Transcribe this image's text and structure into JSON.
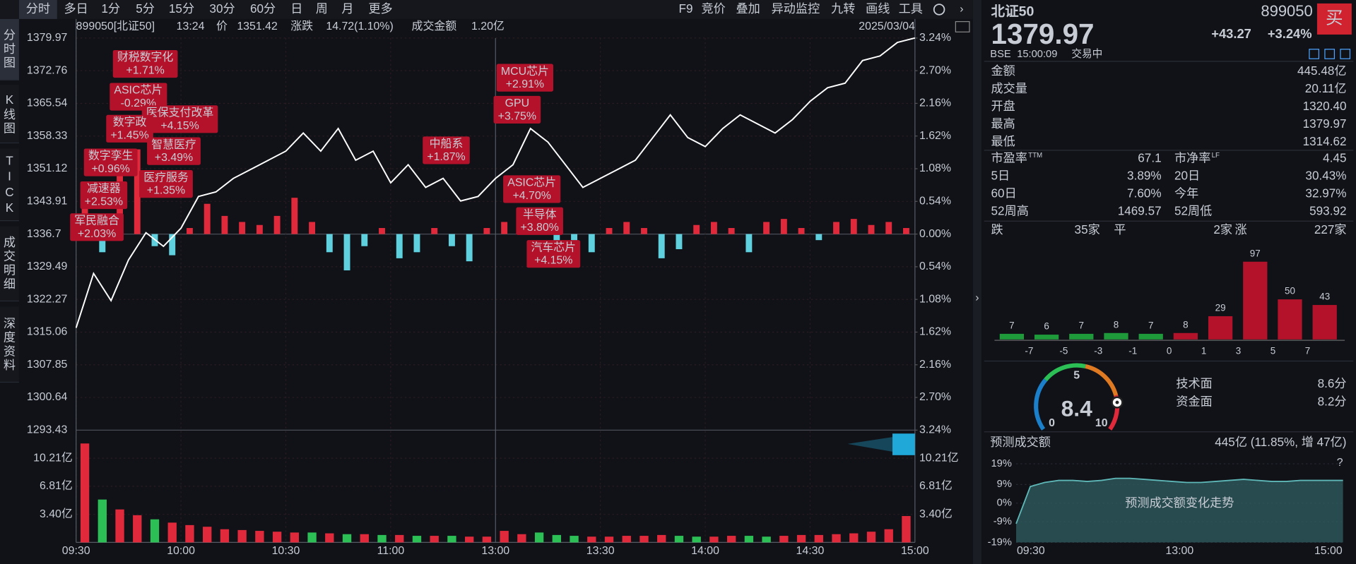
{
  "toolbar": {
    "tabs": [
      "分时",
      "多日",
      "1分",
      "5分",
      "15分",
      "30分",
      "60分",
      "日",
      "周",
      "月",
      "更多"
    ],
    "tools": [
      "F9",
      "竞价",
      "叠加",
      "异动监控",
      "九转",
      "画线",
      "工具"
    ]
  },
  "side_tabs": [
    "分时图",
    "K线图",
    "TICK",
    "成交明细",
    "深度资料"
  ],
  "info": {
    "code": "899050[北证50]",
    "time": "13:24",
    "price_label": "价",
    "price": "1351.42",
    "change_label": "涨跌",
    "change": "14.72(1.10%)",
    "amount_label": "成交金额",
    "amount": "1.20亿",
    "date": "2025/03/04"
  },
  "intraday": {
    "ylim": [
      1293.43,
      1379.97
    ],
    "yticks": [
      1379.97,
      1372.76,
      1365.54,
      1358.33,
      1351.12,
      1343.91,
      1336.7,
      1329.49,
      1322.27,
      1315.06,
      1307.85,
      1300.64,
      1293.43
    ],
    "pct_lim": [
      -3.24,
      3.24
    ],
    "pct_ticks": [
      {
        "value": 3.24,
        "label": "3.24%"
      },
      {
        "value": 2.7,
        "label": "2.70%"
      },
      {
        "value": 2.16,
        "label": "2.16%"
      },
      {
        "value": 1.62,
        "label": "1.62%"
      },
      {
        "value": 1.08,
        "label": "1.08%"
      },
      {
        "value": 0.54,
        "label": "0.54%"
      },
      {
        "value": 0,
        "label": "0.00%"
      },
      {
        "value": -0.54,
        "label": "0.54%"
      },
      {
        "value": -1.08,
        "label": "1.08%"
      },
      {
        "value": -1.62,
        "label": "1.62%"
      },
      {
        "value": -2.16,
        "label": "2.16%"
      },
      {
        "value": -2.7,
        "label": "2.70%"
      },
      {
        "value": -3.24,
        "label": "3.24%"
      }
    ],
    "times": [
      "09:30",
      "10:00",
      "10:30",
      "11:00",
      "13:00",
      "13:30",
      "14:00",
      "14:30",
      "15:00"
    ],
    "price": [
      1316,
      1328,
      1322,
      1331,
      1337,
      1334,
      1338,
      1345,
      1346,
      1349,
      1351,
      1353,
      1355,
      1359,
      1355,
      1360,
      1353,
      1355,
      1348,
      1352,
      1347,
      1349,
      1344,
      1345,
      1349,
      1352,
      1360,
      1357,
      1352,
      1347,
      1349,
      1351,
      1353,
      1358,
      1363,
      1358,
      1356,
      1360,
      1363,
      1361,
      1359,
      1362,
      1366,
      1369,
      1370,
      1375,
      1376,
      1379,
      1379.97
    ],
    "flow": [
      0.8,
      -0.3,
      1.2,
      1.4,
      -0.2,
      -0.35,
      0.1,
      0.5,
      0.3,
      0.2,
      0.15,
      0.3,
      0.6,
      0.2,
      -0.3,
      -0.6,
      -0.2,
      0.1,
      -0.4,
      -0.3,
      0.1,
      -0.2,
      -0.45,
      0.1,
      0.2,
      0.3,
      0.1,
      -0.4,
      -0.5,
      -0.3,
      0.1,
      0.2,
      0.1,
      -0.4,
      -0.25,
      0.15,
      0.2,
      0.1,
      -0.3,
      0.2,
      0.25,
      0.1,
      -0.1,
      0.2,
      0.25,
      0.15,
      0.2,
      0.1
    ],
    "volume_lim": [
      0,
      13.62
    ],
    "volume_ticks": [
      {
        "value": 10.21,
        "label": "10.21亿"
      },
      {
        "value": 6.81,
        "label": "6.81亿"
      },
      {
        "value": 3.4,
        "label": "3.40亿"
      }
    ],
    "volume": [
      12.0,
      5.2,
      4.0,
      3.3,
      2.8,
      2.4,
      2.1,
      1.9,
      1.6,
      1.5,
      1.4,
      1.3,
      1.2,
      1.2,
      1.1,
      1.0,
      1.0,
      0.9,
      0.9,
      0.8,
      0.8,
      0.8,
      0.7,
      0.7,
      1.4,
      1.0,
      1.2,
      0.9,
      0.8,
      0.7,
      0.7,
      0.8,
      0.8,
      0.9,
      0.8,
      0.7,
      0.7,
      0.8,
      0.8,
      0.7,
      0.8,
      0.9,
      0.9,
      1.0,
      1.1,
      1.3,
      1.6,
      3.2
    ],
    "up_color": "#e0293a",
    "down_color": "#2bbf55",
    "flow_down_color": "#5fd0dd",
    "line_color": "#ffffff",
    "annotations": [
      {
        "name": "财税数字化",
        "change": "+1.71%"
      },
      {
        "name": "ASIC芯片",
        "change": "-0.29%"
      },
      {
        "name": "医保支付改革",
        "change": "+4.15%"
      },
      {
        "name": "数字政",
        "change": "+1.45%"
      },
      {
        "name": "智慧医疗",
        "change": "+3.49%"
      },
      {
        "name": "数字孪生",
        "change": "+0.96%"
      },
      {
        "name": "医疗服务",
        "change": "+1.35%"
      },
      {
        "name": "减速器",
        "change": "+2.53%"
      },
      {
        "name": "军民融合",
        "change": "+2.03%"
      },
      {
        "name": "中船系",
        "change": "+1.87%"
      },
      {
        "name": "MCU芯片",
        "change": "+2.91%"
      },
      {
        "name": "GPU",
        "change": "+3.75%"
      },
      {
        "name": "ASIC芯片",
        "change": "+4.70%"
      },
      {
        "name": "半导体",
        "change": "+3.80%"
      },
      {
        "name": "汽车芯片",
        "change": "+4.15%"
      }
    ]
  },
  "quote": {
    "name": "北证50",
    "code": "899050",
    "buy": "买",
    "price": "1379.97",
    "change": "+43.27",
    "pct": "+3.24%",
    "exchange": "BSE",
    "time": "15:00:09",
    "status": "交易中"
  },
  "stats": [
    {
      "label": "金额",
      "value": "445.48亿",
      "color": "#d6d9de"
    },
    {
      "label": "成交量",
      "value": "20.11亿",
      "color": "#d6d9de"
    },
    {
      "label": "开盘",
      "value": "1320.40",
      "color": "#2bbf55"
    },
    {
      "label": "最高",
      "value": "1379.97",
      "color": "#e0293a"
    },
    {
      "label": "最低",
      "value": "1314.62",
      "color": "#2bbf55"
    }
  ],
  "stats2": [
    [
      {
        "label": "市盈率",
        "sup": "TTM",
        "value": "67.1",
        "color": "#d6d9de"
      },
      {
        "label": "市净率",
        "sup": "LF",
        "value": "4.45",
        "color": "#d6d9de"
      }
    ],
    [
      {
        "label": "5日",
        "value": "3.89%",
        "color": "#e0293a"
      },
      {
        "label": "20日",
        "value": "30.43%",
        "color": "#e0293a"
      }
    ],
    [
      {
        "label": "60日",
        "value": "7.60%",
        "color": "#e0293a"
      },
      {
        "label": "今年",
        "value": "32.97%",
        "color": "#e0293a"
      }
    ],
    [
      {
        "label": "52周高",
        "value": "1469.57",
        "color": "#d6d9de"
      },
      {
        "label": "52周低",
        "value": "593.92",
        "color": "#d6d9de"
      }
    ]
  ],
  "breadth": {
    "down_label": "跌",
    "down": "35家",
    "flat_label": "平",
    "flat": "2家",
    "up_label": "涨",
    "up": "227家"
  },
  "distribution": {
    "values": [
      7,
      6,
      7,
      8,
      7,
      8,
      29,
      97,
      50,
      43
    ],
    "colors": [
      "#1e9a3a",
      "#1e9a3a",
      "#1e9a3a",
      "#1e9a3a",
      "#1e9a3a",
      "#b3122a",
      "#b3122a",
      "#b3122a",
      "#b3122a",
      "#b3122a"
    ],
    "xticks": [
      -7,
      -5,
      -3,
      -1,
      0,
      1,
      3,
      5,
      7
    ]
  },
  "gauge": {
    "ticks": [
      0,
      5,
      10
    ],
    "score": 8.4,
    "items": [
      {
        "label": "技术面",
        "value": "8.6分"
      },
      {
        "label": "资金面",
        "value": "8.2分"
      }
    ]
  },
  "forecast": {
    "title": "预测成交额",
    "value": "445亿 (11.85%, 增 47亿)",
    "help": "?",
    "caption": "预测成交额变化走势",
    "ylim": [
      -19,
      19
    ],
    "yticks": [
      {
        "value": 19,
        "label": "19%"
      },
      {
        "value": 9,
        "label": "9%"
      },
      {
        "value": 0,
        "label": "0%"
      },
      {
        "value": -9,
        "label": "-9%"
      },
      {
        "value": -19,
        "label": "-19%"
      }
    ],
    "times": [
      "09:30",
      "13:00",
      "15:00"
    ],
    "values": [
      -10,
      8,
      10,
      11,
      11,
      10.5,
      11,
      12,
      12,
      11.5,
      11,
      10.5,
      10,
      10,
      10.5,
      11,
      11.5,
      11,
      10.5,
      10.5,
      11,
      11,
      11,
      11
    ]
  }
}
